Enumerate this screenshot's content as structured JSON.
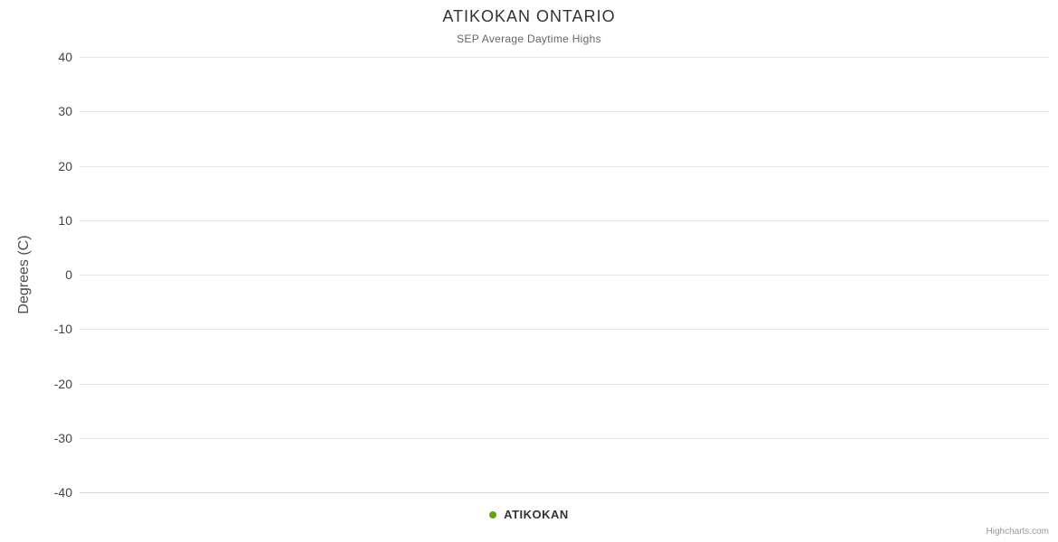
{
  "chart": {
    "title": "ATIKOKAN ONTARIO",
    "subtitle": "SEP Average Daytime Highs",
    "y_axis_title": "Degrees (C)",
    "legend": {
      "items": [
        {
          "label": "ATIKOKAN",
          "marker_color": "#65a30d",
          "marker_shape": "circle"
        }
      ],
      "position": "bottom-center"
    },
    "credits": "Highcharts.com"
  },
  "chart_data": {
    "type": "line",
    "title": "ATIKOKAN ONTARIO",
    "subtitle": "SEP Average Daytime Highs",
    "xlabel": "",
    "ylabel": "Degrees (C)",
    "ylim": [
      -40,
      40
    ],
    "ytick_interval": 10,
    "yticks": [
      40,
      30,
      20,
      10,
      0,
      -10,
      -20,
      -30,
      -40
    ],
    "grid": true,
    "legend_position": "bottom-center",
    "series": [
      {
        "name": "ATIKOKAN",
        "color": "#65a30d",
        "marker": "circle",
        "values": []
      }
    ],
    "colors": {
      "background": "#ffffff",
      "gridline": "#e6e6e6",
      "axis_line": "#ccd6eb",
      "title_text": "#333333",
      "subtitle_text": "#666666",
      "tick_label_text": "#444444",
      "axis_title_text": "#4d4d4d",
      "legend_text": "#333333",
      "credits_text": "#999999"
    }
  }
}
